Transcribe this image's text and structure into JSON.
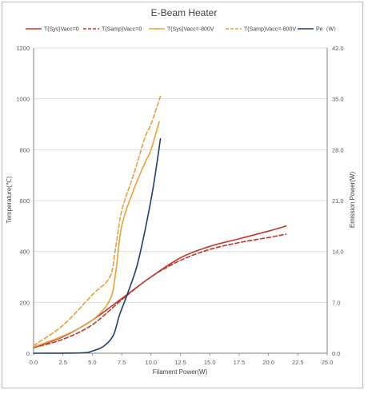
{
  "chart_data": {
    "type": "line",
    "title": "E-Beam Heater",
    "xlabel": "Filament Power(W)",
    "ylabel": "Temperature(℃)",
    "y2label": "Emission Power(W)",
    "xlim": [
      0,
      25
    ],
    "ylim": [
      0,
      1200
    ],
    "y2lim": [
      0,
      42
    ],
    "x_ticks": [
      "0.0",
      "2.5",
      "5.0",
      "7.5",
      "10.0",
      "12.5",
      "15.0",
      "17.5",
      "20.0",
      "22.5",
      "25.0"
    ],
    "y_ticks": [
      "0",
      "200",
      "400",
      "600",
      "800",
      "1000",
      "1200"
    ],
    "y2_ticks": [
      "0.0",
      "7.0",
      "14.0",
      "21.0",
      "28.0",
      "35.0",
      "42.0"
    ],
    "grid": "horizontal",
    "legend_position": "top",
    "series": [
      {
        "name": "T(Sys)Vacc=0",
        "color": "#c0392b",
        "dash": "solid",
        "axis": "left",
        "points": [
          [
            0,
            22
          ],
          [
            2.5,
            65
          ],
          [
            5,
            130
          ],
          [
            7.5,
            215
          ],
          [
            10,
            300
          ],
          [
            12.5,
            375
          ],
          [
            15,
            420
          ],
          [
            17.5,
            450
          ],
          [
            20,
            480
          ],
          [
            21.5,
            500
          ]
        ]
      },
      {
        "name": "T(Samp)Vacc=0",
        "color": "#c0392b",
        "dash": "dashed",
        "axis": "left",
        "points": [
          [
            0,
            22
          ],
          [
            2.5,
            55
          ],
          [
            5,
            112
          ],
          [
            7.5,
            210
          ],
          [
            10,
            300
          ],
          [
            12.5,
            365
          ],
          [
            15,
            408
          ],
          [
            17.5,
            435
          ],
          [
            20,
            455
          ],
          [
            21.5,
            468
          ]
        ]
      },
      {
        "name": "T(Sys)Vacc=-800V",
        "color": "#e6a23c",
        "dash": "solid",
        "axis": "left",
        "points": [
          [
            0,
            25
          ],
          [
            2.5,
            68
          ],
          [
            5,
            130
          ],
          [
            6.5,
            210
          ],
          [
            7,
            320
          ],
          [
            7.5,
            500
          ],
          [
            8.5,
            640
          ],
          [
            9.5,
            750
          ],
          [
            10,
            800
          ],
          [
            10.7,
            910
          ]
        ]
      },
      {
        "name": "T(Samp)Vacc=-800V",
        "color": "#e6a23c",
        "dash": "dashed",
        "axis": "left",
        "points": [
          [
            0,
            30
          ],
          [
            2.5,
            110
          ],
          [
            5,
            230
          ],
          [
            6.5,
            300
          ],
          [
            7,
            420
          ],
          [
            7.5,
            560
          ],
          [
            8.5,
            700
          ],
          [
            9.5,
            850
          ],
          [
            10,
            900
          ],
          [
            10.8,
            1010
          ]
        ]
      },
      {
        "name": "Pe（W）",
        "color": "#1f3f66",
        "dash": "solid",
        "axis": "right",
        "points": [
          [
            0,
            0
          ],
          [
            4,
            0.05
          ],
          [
            5,
            0.3
          ],
          [
            6,
            1.0
          ],
          [
            6.8,
            2.5
          ],
          [
            7.3,
            5.2
          ],
          [
            8,
            8.2
          ],
          [
            8.8,
            12.0
          ],
          [
            9.5,
            17.0
          ],
          [
            10.2,
            23.0
          ],
          [
            10.8,
            29.5
          ]
        ]
      }
    ]
  }
}
